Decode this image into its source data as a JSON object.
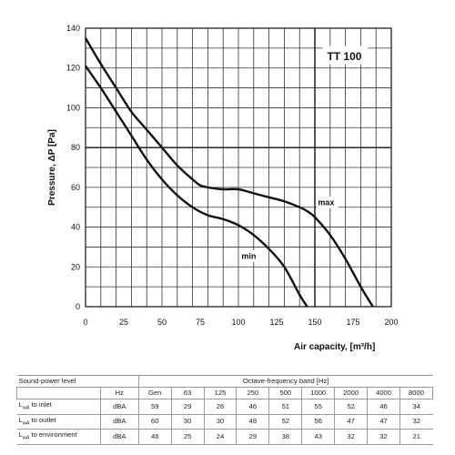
{
  "chart_data": {
    "type": "line",
    "title": "TT 100",
    "xlabel": "Air capacity, [m³/h]",
    "ylabel": "Pressure, ΔP [Pa]",
    "xlim": [
      0,
      200
    ],
    "ylim": [
      0,
      140
    ],
    "xticks": [
      0,
      25,
      50,
      75,
      100,
      125,
      150,
      175,
      200
    ],
    "yticks": [
      0,
      20,
      40,
      60,
      80,
      100,
      120,
      140
    ],
    "grid": true,
    "series": [
      {
        "name": "max",
        "points": [
          [
            0,
            135
          ],
          [
            10,
            122
          ],
          [
            20,
            110
          ],
          [
            30,
            98
          ],
          [
            40,
            89
          ],
          [
            50,
            80
          ],
          [
            60,
            71
          ],
          [
            70,
            64
          ],
          [
            75,
            61
          ],
          [
            80,
            60
          ],
          [
            90,
            59
          ],
          [
            100,
            59
          ],
          [
            110,
            57
          ],
          [
            120,
            55
          ],
          [
            130,
            53
          ],
          [
            140,
            50
          ],
          [
            145,
            48
          ],
          [
            150,
            45
          ],
          [
            160,
            36
          ],
          [
            170,
            24
          ],
          [
            180,
            10
          ],
          [
            188,
            0
          ]
        ]
      },
      {
        "name": "min",
        "points": [
          [
            0,
            121
          ],
          [
            10,
            110
          ],
          [
            20,
            98
          ],
          [
            30,
            86
          ],
          [
            40,
            74
          ],
          [
            50,
            64
          ],
          [
            60,
            56
          ],
          [
            70,
            50
          ],
          [
            80,
            46
          ],
          [
            90,
            44
          ],
          [
            100,
            41
          ],
          [
            110,
            36
          ],
          [
            120,
            29
          ],
          [
            130,
            20
          ],
          [
            140,
            6
          ],
          [
            145,
            0
          ]
        ]
      }
    ],
    "annotations": {
      "max_label": "max",
      "min_label": "min"
    },
    "highlight_lines": {
      "x": 150,
      "y": 80
    }
  },
  "sound_table": {
    "title": "Sound-power level",
    "band_header": "Octave-frequency band [Hz]",
    "unit_header": "Hz",
    "columns": [
      "Gen",
      "63",
      "125",
      "250",
      "500",
      "1000",
      "2000",
      "4000",
      "8000"
    ],
    "rows": [
      {
        "label_main": "L",
        "label_sub": "wA",
        "label_rest": " to inlet",
        "unit": "dBA",
        "values": [
          "59",
          "29",
          "26",
          "46",
          "51",
          "55",
          "52",
          "46",
          "34"
        ]
      },
      {
        "label_main": "L",
        "label_sub": "wA",
        "label_rest": " to outlet",
        "unit": "dBA",
        "values": [
          "60",
          "30",
          "30",
          "48",
          "52",
          "56",
          "47",
          "47",
          "32"
        ]
      },
      {
        "label_main": "L",
        "label_sub": "wA",
        "label_rest": " to environment",
        "unit": "dBA",
        "values": [
          "46",
          "25",
          "24",
          "29",
          "38",
          "43",
          "32",
          "32",
          "21"
        ]
      }
    ]
  }
}
